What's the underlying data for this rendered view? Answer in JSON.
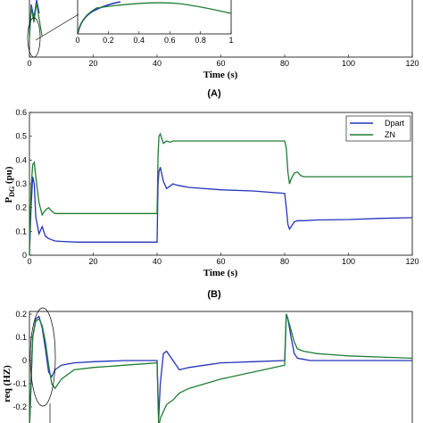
{
  "colors": {
    "dpart": "#2233bb",
    "zn": "#1e7d32"
  },
  "chart_data": [
    {
      "type": "line",
      "panel_label": "(A)",
      "xlabel": "Time (s)",
      "xlim": [
        0,
        120
      ],
      "x_ticks": [
        "0",
        "20",
        "40",
        "60",
        "80",
        "100",
        "120"
      ],
      "inset": {
        "xlim": [
          0,
          1
        ],
        "x_ticks": [
          "0",
          "0.2",
          "0.4",
          "0.6",
          "0.8",
          "1"
        ]
      }
    },
    {
      "type": "line",
      "panel_label": "(B)",
      "xlabel": "Time (s)",
      "ylabel": "P",
      "ylabel_sub": "DG",
      "ylabel_unit": " (pu)",
      "xlim": [
        0,
        120
      ],
      "ylim": [
        0,
        0.6
      ],
      "x_ticks": [
        "0",
        "20",
        "40",
        "60",
        "80",
        "100",
        "120"
      ],
      "y_ticks": [
        "0",
        "0.1",
        "0.2",
        "0.3",
        "0.4",
        "0.5",
        "0.6"
      ],
      "legend": [
        "Dpart",
        "ZN"
      ],
      "legend_position": "top-right",
      "series": [
        {
          "name": "Dpart",
          "x": [
            0,
            0.5,
            1,
            1.5,
            2,
            3,
            4,
            5,
            6,
            7,
            8,
            10,
            15,
            20,
            30,
            40,
            40.3,
            40.6,
            41,
            42,
            43,
            44,
            45,
            46,
            48,
            50,
            60,
            70,
            80,
            80.5,
            81,
            81.5,
            82,
            83,
            84,
            86,
            90,
            100,
            110,
            120
          ],
          "y": [
            0,
            0.2,
            0.33,
            0.3,
            0.16,
            0.09,
            0.12,
            0.08,
            0.07,
            0.065,
            0.06,
            0.058,
            0.055,
            0.055,
            0.055,
            0.055,
            0.3,
            0.35,
            0.37,
            0.31,
            0.28,
            0.29,
            0.3,
            0.295,
            0.29,
            0.285,
            0.275,
            0.27,
            0.26,
            0.2,
            0.13,
            0.11,
            0.12,
            0.14,
            0.145,
            0.145,
            0.148,
            0.15,
            0.155,
            0.158
          ]
        },
        {
          "name": "ZN",
          "x": [
            0,
            0.5,
            1,
            1.5,
            2,
            3,
            4,
            5,
            6,
            7,
            8,
            10,
            20,
            30,
            40,
            40.3,
            40.6,
            41,
            42,
            43,
            44,
            45,
            48,
            50,
            60,
            70,
            80,
            80.5,
            81,
            81.5,
            82,
            83,
            84,
            85,
            86,
            90,
            100,
            110,
            120
          ],
          "y": [
            0,
            0.28,
            0.38,
            0.39,
            0.33,
            0.22,
            0.17,
            0.19,
            0.2,
            0.185,
            0.175,
            0.175,
            0.175,
            0.175,
            0.175,
            0.42,
            0.5,
            0.51,
            0.47,
            0.48,
            0.475,
            0.48,
            0.48,
            0.48,
            0.48,
            0.48,
            0.48,
            0.45,
            0.35,
            0.3,
            0.32,
            0.345,
            0.35,
            0.335,
            0.33,
            0.33,
            0.33,
            0.33,
            0.33
          ]
        }
      ]
    },
    {
      "type": "line",
      "ylabel": "req (HZ)",
      "xlim": [
        0,
        120
      ],
      "ylim": [
        -0.3,
        0.2
      ],
      "y_ticks": [
        "0.2",
        "0.1",
        "0",
        "-0.1",
        "-0.2"
      ],
      "series": [
        {
          "name": "Dpart",
          "x": [
            0,
            1,
            2,
            3,
            4,
            5,
            6,
            7,
            8,
            10,
            14,
            20,
            30,
            40,
            40.5,
            41,
            42,
            43,
            45,
            47,
            50,
            55,
            60,
            70,
            80,
            80.5,
            81,
            82,
            83,
            84,
            86,
            88,
            90,
            100,
            110,
            120
          ],
          "y": [
            -0.3,
            0.1,
            0.18,
            0.19,
            0.14,
            0.05,
            -0.05,
            -0.07,
            -0.04,
            -0.02,
            -0.01,
            -0.005,
            0,
            0,
            -0.25,
            -0.1,
            0.03,
            0.04,
            0,
            -0.04,
            -0.03,
            -0.02,
            -0.01,
            -0.005,
            0,
            0.2,
            0.18,
            0.1,
            0.03,
            0.01,
            0.005,
            0,
            0,
            0,
            0,
            0
          ]
        },
        {
          "name": "ZN",
          "x": [
            0,
            1,
            2,
            3,
            4,
            5,
            6,
            7,
            8,
            10,
            14,
            20,
            30,
            40,
            40.5,
            41,
            42,
            43,
            45,
            47,
            50,
            55,
            60,
            70,
            80,
            80.5,
            81,
            82,
            83,
            84,
            86,
            88,
            90,
            95,
            100,
            110,
            120
          ],
          "y": [
            -0.3,
            0.1,
            0.17,
            0.18,
            0.15,
            0.08,
            -0.02,
            -0.1,
            -0.12,
            -0.08,
            -0.04,
            -0.03,
            -0.02,
            -0.01,
            -0.29,
            -0.25,
            -0.22,
            -0.19,
            -0.17,
            -0.14,
            -0.12,
            -0.1,
            -0.08,
            -0.05,
            -0.02,
            0.2,
            0.18,
            0.13,
            0.08,
            0.05,
            0.04,
            0.035,
            0.03,
            0.025,
            0.02,
            0.015,
            0.01
          ]
        }
      ]
    }
  ]
}
